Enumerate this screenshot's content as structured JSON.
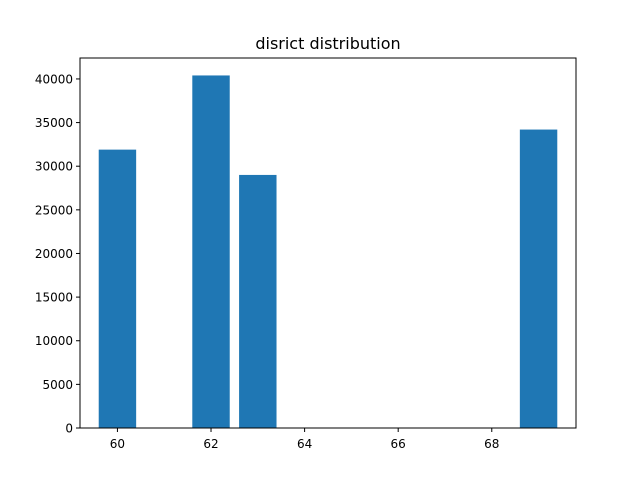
{
  "chart_data": {
    "type": "bar",
    "title": "disrict distribution",
    "xlabel": "",
    "ylabel": "",
    "x": [
      60,
      62,
      63,
      69
    ],
    "values": [
      31900,
      40400,
      29000,
      34200
    ],
    "xlim": [
      59.2,
      69.8
    ],
    "ylim": [
      0,
      42400
    ],
    "xticks": [
      60,
      62,
      64,
      66,
      68
    ],
    "yticks": [
      0,
      5000,
      10000,
      15000,
      20000,
      25000,
      30000,
      35000,
      40000
    ],
    "bar_width": 0.8,
    "bar_color": "#1f77b4",
    "grid": false,
    "legend": "none"
  }
}
